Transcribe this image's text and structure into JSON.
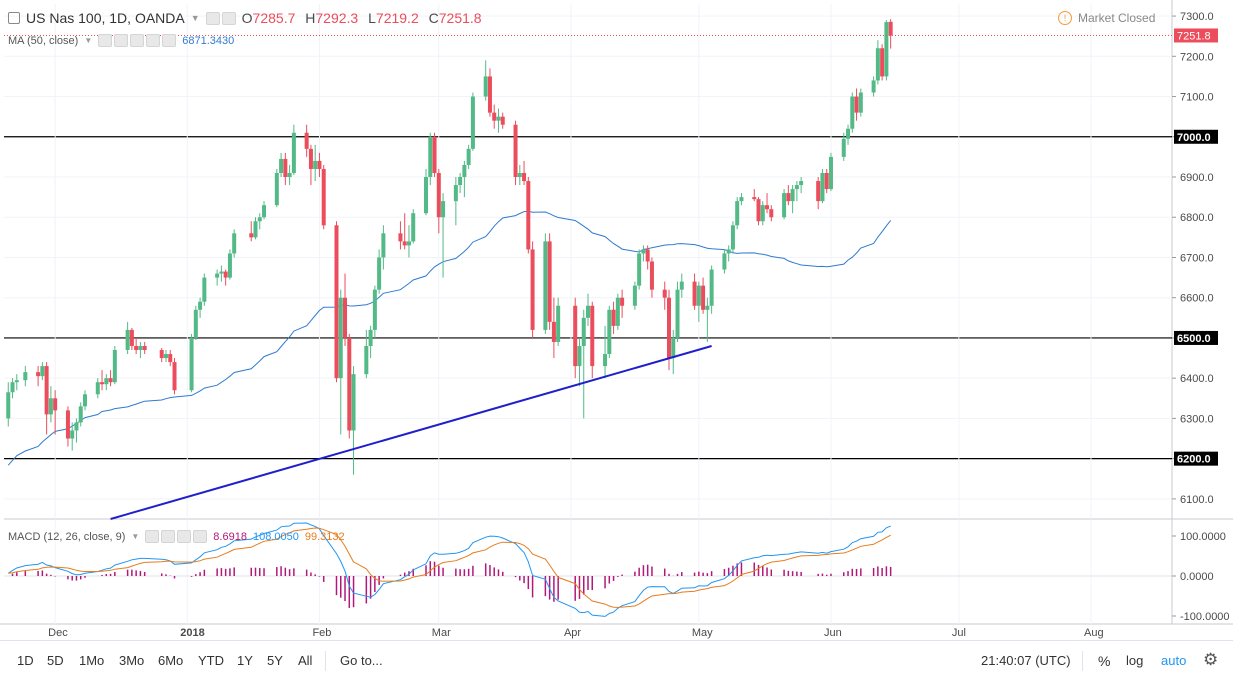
{
  "symbol": {
    "title": "US Nas 100, 1D, OANDA",
    "open_label": "O",
    "open": "7285.7",
    "high_label": "H",
    "high": "7292.3",
    "low_label": "L",
    "low": "7219.2",
    "close_label": "C",
    "close": "7251.8"
  },
  "market_status": "Market Closed",
  "ma": {
    "label": "MA (50, close)",
    "value": "6871.3430",
    "color": "#2f7bcf"
  },
  "macd": {
    "label": "MACD (12, 26, close, 9)",
    "hist": "8.6918",
    "macd": "108.0050",
    "signal": "99.3132",
    "hist_color": "#b2187a",
    "macd_color": "#2196f3",
    "signal_color": "#e87c1e"
  },
  "price_axis": {
    "ticks": [
      "7300.0",
      "7200.0",
      "7100.0",
      "7000.0",
      "6900.0",
      "6800.0",
      "6700.0",
      "6600.0",
      "6500.0",
      "6400.0",
      "6300.0",
      "6200.0",
      "6100.0"
    ],
    "last_price": "7251.8",
    "hlines": [
      "7000.0",
      "6500.0",
      "6200.0"
    ]
  },
  "macd_axis": {
    "ticks": [
      "100.0000",
      "0.0000",
      "-100.0000"
    ]
  },
  "time_axis": {
    "labels": [
      "Dec",
      "2018",
      "Feb",
      "Mar",
      "Apr",
      "May",
      "Jun",
      "Jul",
      "Aug"
    ]
  },
  "toolbar": {
    "ranges": [
      "1D",
      "5D",
      "1Mo",
      "3Mo",
      "6Mo",
      "YTD",
      "1Y",
      "5Y",
      "All"
    ],
    "goto": "Go to...",
    "clock": "21:40:07 (UTC)",
    "percent": "%",
    "log": "log",
    "auto": "auto"
  },
  "colors": {
    "up": "#53b987",
    "down": "#eb4d5c",
    "trend": "#1f1fcc",
    "grid": "#f0f3fa",
    "last_price_bg": "#eb4d5c"
  },
  "chart_data": {
    "type": "candlestick",
    "title": "US Nas 100, 1D, OANDA",
    "ylim": [
      6050,
      7330
    ],
    "x_dates_range": [
      "2017-11-20",
      "2018-06-15"
    ],
    "horizontal_levels": [
      7000,
      6500,
      6200
    ],
    "trendline": {
      "from": [
        "2017-12-14",
        6050
      ],
      "to": [
        "2018-05-04",
        6480
      ]
    },
    "candles": [
      {
        "date": "2017-11-20",
        "o": 6300,
        "h": 6390,
        "l": 6280,
        "c": 6365
      },
      {
        "date": "2017-11-21",
        "o": 6365,
        "h": 6400,
        "l": 6350,
        "c": 6390
      },
      {
        "date": "2017-11-22",
        "o": 6390,
        "h": 6410,
        "l": 6370,
        "c": 6395
      },
      {
        "date": "2017-11-24",
        "o": 6395,
        "h": 6430,
        "l": 6380,
        "c": 6415
      },
      {
        "date": "2017-11-27",
        "o": 6415,
        "h": 6430,
        "l": 6380,
        "c": 6405
      },
      {
        "date": "2017-11-28",
        "o": 6405,
        "h": 6440,
        "l": 6395,
        "c": 6430
      },
      {
        "date": "2017-11-29",
        "o": 6430,
        "h": 6440,
        "l": 6260,
        "c": 6310
      },
      {
        "date": "2017-11-30",
        "o": 6310,
        "h": 6380,
        "l": 6290,
        "c": 6350
      },
      {
        "date": "2017-12-01",
        "o": 6350,
        "h": 6370,
        "l": 6260,
        "c": 6320
      },
      {
        "date": "2017-12-04",
        "o": 6320,
        "h": 6330,
        "l": 6230,
        "c": 6250
      },
      {
        "date": "2017-12-05",
        "o": 6250,
        "h": 6290,
        "l": 6220,
        "c": 6270
      },
      {
        "date": "2017-12-06",
        "o": 6270,
        "h": 6300,
        "l": 6240,
        "c": 6290
      },
      {
        "date": "2017-12-07",
        "o": 6290,
        "h": 6340,
        "l": 6280,
        "c": 6330
      },
      {
        "date": "2017-12-08",
        "o": 6330,
        "h": 6370,
        "l": 6320,
        "c": 6360
      },
      {
        "date": "2017-12-11",
        "o": 6360,
        "h": 6400,
        "l": 6350,
        "c": 6390
      },
      {
        "date": "2017-12-12",
        "o": 6390,
        "h": 6420,
        "l": 6370,
        "c": 6385
      },
      {
        "date": "2017-12-13",
        "o": 6385,
        "h": 6410,
        "l": 6370,
        "c": 6400
      },
      {
        "date": "2017-12-14",
        "o": 6400,
        "h": 6420,
        "l": 6380,
        "c": 6390
      },
      {
        "date": "2017-12-15",
        "o": 6390,
        "h": 6480,
        "l": 6385,
        "c": 6470
      },
      {
        "date": "2017-12-18",
        "o": 6470,
        "h": 6540,
        "l": 6460,
        "c": 6520
      },
      {
        "date": "2017-12-19",
        "o": 6520,
        "h": 6525,
        "l": 6470,
        "c": 6480
      },
      {
        "date": "2017-12-20",
        "o": 6480,
        "h": 6500,
        "l": 6460,
        "c": 6470
      },
      {
        "date": "2017-12-21",
        "o": 6470,
        "h": 6490,
        "l": 6450,
        "c": 6480
      },
      {
        "date": "2017-12-22",
        "o": 6480,
        "h": 6490,
        "l": 6460,
        "c": 6470
      },
      {
        "date": "2017-12-26",
        "o": 6470,
        "h": 6475,
        "l": 6440,
        "c": 6450
      },
      {
        "date": "2017-12-27",
        "o": 6450,
        "h": 6470,
        "l": 6440,
        "c": 6460
      },
      {
        "date": "2017-12-28",
        "o": 6460,
        "h": 6470,
        "l": 6430,
        "c": 6440
      },
      {
        "date": "2017-12-29",
        "o": 6440,
        "h": 6450,
        "l": 6360,
        "c": 6370
      },
      {
        "date": "2018-01-02",
        "o": 6370,
        "h": 6510,
        "l": 6365,
        "c": 6500
      },
      {
        "date": "2018-01-03",
        "o": 6500,
        "h": 6580,
        "l": 6495,
        "c": 6570
      },
      {
        "date": "2018-01-04",
        "o": 6570,
        "h": 6600,
        "l": 6550,
        "c": 6590
      },
      {
        "date": "2018-01-05",
        "o": 6590,
        "h": 6660,
        "l": 6580,
        "c": 6650
      },
      {
        "date": "2018-01-08",
        "o": 6650,
        "h": 6670,
        "l": 6630,
        "c": 6660
      },
      {
        "date": "2018-01-09",
        "o": 6660,
        "h": 6680,
        "l": 6640,
        "c": 6665
      },
      {
        "date": "2018-01-10",
        "o": 6665,
        "h": 6670,
        "l": 6630,
        "c": 6650
      },
      {
        "date": "2018-01-11",
        "o": 6650,
        "h": 6720,
        "l": 6645,
        "c": 6710
      },
      {
        "date": "2018-01-12",
        "o": 6710,
        "h": 6770,
        "l": 6700,
        "c": 6760
      },
      {
        "date": "2018-01-16",
        "o": 6760,
        "h": 6790,
        "l": 6740,
        "c": 6750
      },
      {
        "date": "2018-01-17",
        "o": 6750,
        "h": 6800,
        "l": 6745,
        "c": 6790
      },
      {
        "date": "2018-01-18",
        "o": 6790,
        "h": 6810,
        "l": 6770,
        "c": 6800
      },
      {
        "date": "2018-01-19",
        "o": 6800,
        "h": 6840,
        "l": 6795,
        "c": 6830
      },
      {
        "date": "2018-01-22",
        "o": 6830,
        "h": 6920,
        "l": 6825,
        "c": 6910
      },
      {
        "date": "2018-01-23",
        "o": 6910,
        "h": 6960,
        "l": 6900,
        "c": 6945
      },
      {
        "date": "2018-01-24",
        "o": 6945,
        "h": 6960,
        "l": 6880,
        "c": 6900
      },
      {
        "date": "2018-01-25",
        "o": 6900,
        "h": 6930,
        "l": 6880,
        "c": 6910
      },
      {
        "date": "2018-01-26",
        "o": 6910,
        "h": 7030,
        "l": 6905,
        "c": 7010
      },
      {
        "date": "2018-01-29",
        "o": 7010,
        "h": 7030,
        "l": 6950,
        "c": 6970
      },
      {
        "date": "2018-01-30",
        "o": 6970,
        "h": 6980,
        "l": 6880,
        "c": 6920
      },
      {
        "date": "2018-01-31",
        "o": 6920,
        "h": 6980,
        "l": 6890,
        "c": 6940
      },
      {
        "date": "2018-02-01",
        "o": 6940,
        "h": 6960,
        "l": 6900,
        "c": 6920
      },
      {
        "date": "2018-02-02",
        "o": 6920,
        "h": 6930,
        "l": 6770,
        "c": 6780
      },
      {
        "date": "2018-02-05",
        "o": 6780,
        "h": 6790,
        "l": 6390,
        "c": 6400
      },
      {
        "date": "2018-02-06",
        "o": 6400,
        "h": 6620,
        "l": 6260,
        "c": 6600
      },
      {
        "date": "2018-02-07",
        "o": 6600,
        "h": 6660,
        "l": 6480,
        "c": 6500
      },
      {
        "date": "2018-02-08",
        "o": 6500,
        "h": 6510,
        "l": 6250,
        "c": 6270
      },
      {
        "date": "2018-02-09",
        "o": 6270,
        "h": 6430,
        "l": 6160,
        "c": 6410
      },
      {
        "date": "2018-02-12",
        "o": 6410,
        "h": 6520,
        "l": 6400,
        "c": 6480
      },
      {
        "date": "2018-02-13",
        "o": 6480,
        "h": 6530,
        "l": 6450,
        "c": 6520
      },
      {
        "date": "2018-02-14",
        "o": 6520,
        "h": 6630,
        "l": 6500,
        "c": 6620
      },
      {
        "date": "2018-02-15",
        "o": 6620,
        "h": 6720,
        "l": 6610,
        "c": 6700
      },
      {
        "date": "2018-02-16",
        "o": 6700,
        "h": 6780,
        "l": 6670,
        "c": 6760
      },
      {
        "date": "2018-02-20",
        "o": 6760,
        "h": 6790,
        "l": 6720,
        "c": 6740
      },
      {
        "date": "2018-02-21",
        "o": 6740,
        "h": 6810,
        "l": 6720,
        "c": 6730
      },
      {
        "date": "2018-02-22",
        "o": 6730,
        "h": 6780,
        "l": 6700,
        "c": 6740
      },
      {
        "date": "2018-02-23",
        "o": 6740,
        "h": 6820,
        "l": 6735,
        "c": 6810
      },
      {
        "date": "2018-02-26",
        "o": 6810,
        "h": 6920,
        "l": 6805,
        "c": 6900
      },
      {
        "date": "2018-02-27",
        "o": 6900,
        "h": 7010,
        "l": 6880,
        "c": 7000
      },
      {
        "date": "2018-02-28",
        "o": 7000,
        "h": 7010,
        "l": 6900,
        "c": 6910
      },
      {
        "date": "2018-03-01",
        "o": 6910,
        "h": 6920,
        "l": 6760,
        "c": 6800
      },
      {
        "date": "2018-03-02",
        "o": 6800,
        "h": 6860,
        "l": 6650,
        "c": 6840
      },
      {
        "date": "2018-03-05",
        "o": 6840,
        "h": 6900,
        "l": 6780,
        "c": 6880
      },
      {
        "date": "2018-03-06",
        "o": 6880,
        "h": 6910,
        "l": 6860,
        "c": 6900
      },
      {
        "date": "2018-03-07",
        "o": 6900,
        "h": 6940,
        "l": 6850,
        "c": 6930
      },
      {
        "date": "2018-03-08",
        "o": 6930,
        "h": 6980,
        "l": 6920,
        "c": 6970
      },
      {
        "date": "2018-03-09",
        "o": 6970,
        "h": 7110,
        "l": 6965,
        "c": 7100
      },
      {
        "date": "2018-03-12",
        "o": 7100,
        "h": 7190,
        "l": 7090,
        "c": 7150
      },
      {
        "date": "2018-03-13",
        "o": 7150,
        "h": 7170,
        "l": 7050,
        "c": 7060
      },
      {
        "date": "2018-03-14",
        "o": 7060,
        "h": 7080,
        "l": 7020,
        "c": 7040
      },
      {
        "date": "2018-03-15",
        "o": 7040,
        "h": 7070,
        "l": 7010,
        "c": 7050
      },
      {
        "date": "2018-03-16",
        "o": 7050,
        "h": 7060,
        "l": 7020,
        "c": 7030
      },
      {
        "date": "2018-03-19",
        "o": 7030,
        "h": 7040,
        "l": 6880,
        "c": 6900
      },
      {
        "date": "2018-03-20",
        "o": 6900,
        "h": 6930,
        "l": 6880,
        "c": 6910
      },
      {
        "date": "2018-03-21",
        "o": 6910,
        "h": 6940,
        "l": 6880,
        "c": 6890
      },
      {
        "date": "2018-03-22",
        "o": 6890,
        "h": 6900,
        "l": 6710,
        "c": 6720
      },
      {
        "date": "2018-03-23",
        "o": 6720,
        "h": 6740,
        "l": 6500,
        "c": 6520
      },
      {
        "date": "2018-03-26",
        "o": 6520,
        "h": 6760,
        "l": 6510,
        "c": 6740
      },
      {
        "date": "2018-03-27",
        "o": 6740,
        "h": 6760,
        "l": 6520,
        "c": 6540
      },
      {
        "date": "2018-03-28",
        "o": 6540,
        "h": 6600,
        "l": 6450,
        "c": 6490
      },
      {
        "date": "2018-03-29",
        "o": 6490,
        "h": 6600,
        "l": 6480,
        "c": 6580
      },
      {
        "date": "2018-04-02",
        "o": 6580,
        "h": 6600,
        "l": 6400,
        "c": 6430
      },
      {
        "date": "2018-04-03",
        "o": 6430,
        "h": 6500,
        "l": 6380,
        "c": 6480
      },
      {
        "date": "2018-04-04",
        "o": 6480,
        "h": 6570,
        "l": 6300,
        "c": 6550
      },
      {
        "date": "2018-04-05",
        "o": 6550,
        "h": 6610,
        "l": 6530,
        "c": 6580
      },
      {
        "date": "2018-04-06",
        "o": 6580,
        "h": 6590,
        "l": 6400,
        "c": 6430
      },
      {
        "date": "2018-04-09",
        "o": 6430,
        "h": 6530,
        "l": 6400,
        "c": 6460
      },
      {
        "date": "2018-04-10",
        "o": 6460,
        "h": 6580,
        "l": 6450,
        "c": 6570
      },
      {
        "date": "2018-04-11",
        "o": 6570,
        "h": 6590,
        "l": 6510,
        "c": 6530
      },
      {
        "date": "2018-04-12",
        "o": 6530,
        "h": 6610,
        "l": 6520,
        "c": 6600
      },
      {
        "date": "2018-04-13",
        "o": 6600,
        "h": 6620,
        "l": 6550,
        "c": 6580
      },
      {
        "date": "2018-04-16",
        "o": 6580,
        "h": 6640,
        "l": 6570,
        "c": 6630
      },
      {
        "date": "2018-04-17",
        "o": 6630,
        "h": 6720,
        "l": 6620,
        "c": 6710
      },
      {
        "date": "2018-04-18",
        "o": 6710,
        "h": 6730,
        "l": 6690,
        "c": 6720
      },
      {
        "date": "2018-04-19",
        "o": 6720,
        "h": 6730,
        "l": 6670,
        "c": 6690
      },
      {
        "date": "2018-04-20",
        "o": 6690,
        "h": 6700,
        "l": 6600,
        "c": 6620
      },
      {
        "date": "2018-04-23",
        "o": 6620,
        "h": 6640,
        "l": 6570,
        "c": 6600
      },
      {
        "date": "2018-04-24",
        "o": 6600,
        "h": 6620,
        "l": 6420,
        "c": 6450
      },
      {
        "date": "2018-04-25",
        "o": 6450,
        "h": 6520,
        "l": 6410,
        "c": 6500
      },
      {
        "date": "2018-04-26",
        "o": 6500,
        "h": 6640,
        "l": 6490,
        "c": 6620
      },
      {
        "date": "2018-04-27",
        "o": 6620,
        "h": 6660,
        "l": 6600,
        "c": 6640
      },
      {
        "date": "2018-04-30",
        "o": 6640,
        "h": 6660,
        "l": 6570,
        "c": 6580
      },
      {
        "date": "2018-05-01",
        "o": 6580,
        "h": 6640,
        "l": 6540,
        "c": 6630
      },
      {
        "date": "2018-05-02",
        "o": 6630,
        "h": 6650,
        "l": 6560,
        "c": 6570
      },
      {
        "date": "2018-05-03",
        "o": 6570,
        "h": 6600,
        "l": 6490,
        "c": 6580
      },
      {
        "date": "2018-05-04",
        "o": 6580,
        "h": 6680,
        "l": 6560,
        "c": 6670
      },
      {
        "date": "2018-05-07",
        "o": 6670,
        "h": 6720,
        "l": 6660,
        "c": 6710
      },
      {
        "date": "2018-05-08",
        "o": 6710,
        "h": 6730,
        "l": 6690,
        "c": 6720
      },
      {
        "date": "2018-05-09",
        "o": 6720,
        "h": 6790,
        "l": 6710,
        "c": 6780
      },
      {
        "date": "2018-05-10",
        "o": 6780,
        "h": 6850,
        "l": 6770,
        "c": 6840
      },
      {
        "date": "2018-05-11",
        "o": 6840,
        "h": 6860,
        "l": 6830,
        "c": 6850
      },
      {
        "date": "2018-05-14",
        "o": 6850,
        "h": 6870,
        "l": 6840,
        "c": 6845
      },
      {
        "date": "2018-05-15",
        "o": 6845,
        "h": 6850,
        "l": 6780,
        "c": 6790
      },
      {
        "date": "2018-05-16",
        "o": 6790,
        "h": 6840,
        "l": 6780,
        "c": 6830
      },
      {
        "date": "2018-05-17",
        "o": 6830,
        "h": 6860,
        "l": 6810,
        "c": 6820
      },
      {
        "date": "2018-05-18",
        "o": 6820,
        "h": 6830,
        "l": 6790,
        "c": 6800
      },
      {
        "date": "2018-05-21",
        "o": 6800,
        "h": 6870,
        "l": 6795,
        "c": 6860
      },
      {
        "date": "2018-05-22",
        "o": 6860,
        "h": 6880,
        "l": 6830,
        "c": 6840
      },
      {
        "date": "2018-05-23",
        "o": 6840,
        "h": 6880,
        "l": 6810,
        "c": 6870
      },
      {
        "date": "2018-05-24",
        "o": 6870,
        "h": 6890,
        "l": 6840,
        "c": 6880
      },
      {
        "date": "2018-05-25",
        "o": 6880,
        "h": 6900,
        "l": 6860,
        "c": 6890
      },
      {
        "date": "2018-05-29",
        "o": 6890,
        "h": 6900,
        "l": 6820,
        "c": 6840
      },
      {
        "date": "2018-05-30",
        "o": 6840,
        "h": 6920,
        "l": 6835,
        "c": 6910
      },
      {
        "date": "2018-05-31",
        "o": 6910,
        "h": 6920,
        "l": 6860,
        "c": 6870
      },
      {
        "date": "2018-06-01",
        "o": 6870,
        "h": 6960,
        "l": 6865,
        "c": 6950
      },
      {
        "date": "2018-06-04",
        "o": 6950,
        "h": 7010,
        "l": 6940,
        "c": 6995
      },
      {
        "date": "2018-06-05",
        "o": 6995,
        "h": 7030,
        "l": 6980,
        "c": 7020
      },
      {
        "date": "2018-06-06",
        "o": 7020,
        "h": 7110,
        "l": 7010,
        "c": 7100
      },
      {
        "date": "2018-06-07",
        "o": 7100,
        "h": 7120,
        "l": 7040,
        "c": 7060
      },
      {
        "date": "2018-06-08",
        "o": 7060,
        "h": 7120,
        "l": 7050,
        "c": 7110
      },
      {
        "date": "2018-06-11",
        "o": 7110,
        "h": 7150,
        "l": 7100,
        "c": 7140
      },
      {
        "date": "2018-06-12",
        "o": 7140,
        "h": 7240,
        "l": 7130,
        "c": 7220
      },
      {
        "date": "2018-06-13",
        "o": 7220,
        "h": 7230,
        "l": 7140,
        "c": 7150
      },
      {
        "date": "2018-06-14",
        "o": 7150,
        "h": 7290,
        "l": 7140,
        "c": 7285
      },
      {
        "date": "2018-06-15",
        "o": 7285.7,
        "h": 7292.3,
        "l": 7219.2,
        "c": 7251.8
      }
    ],
    "macd_ylim": [
      -120,
      140
    ]
  }
}
